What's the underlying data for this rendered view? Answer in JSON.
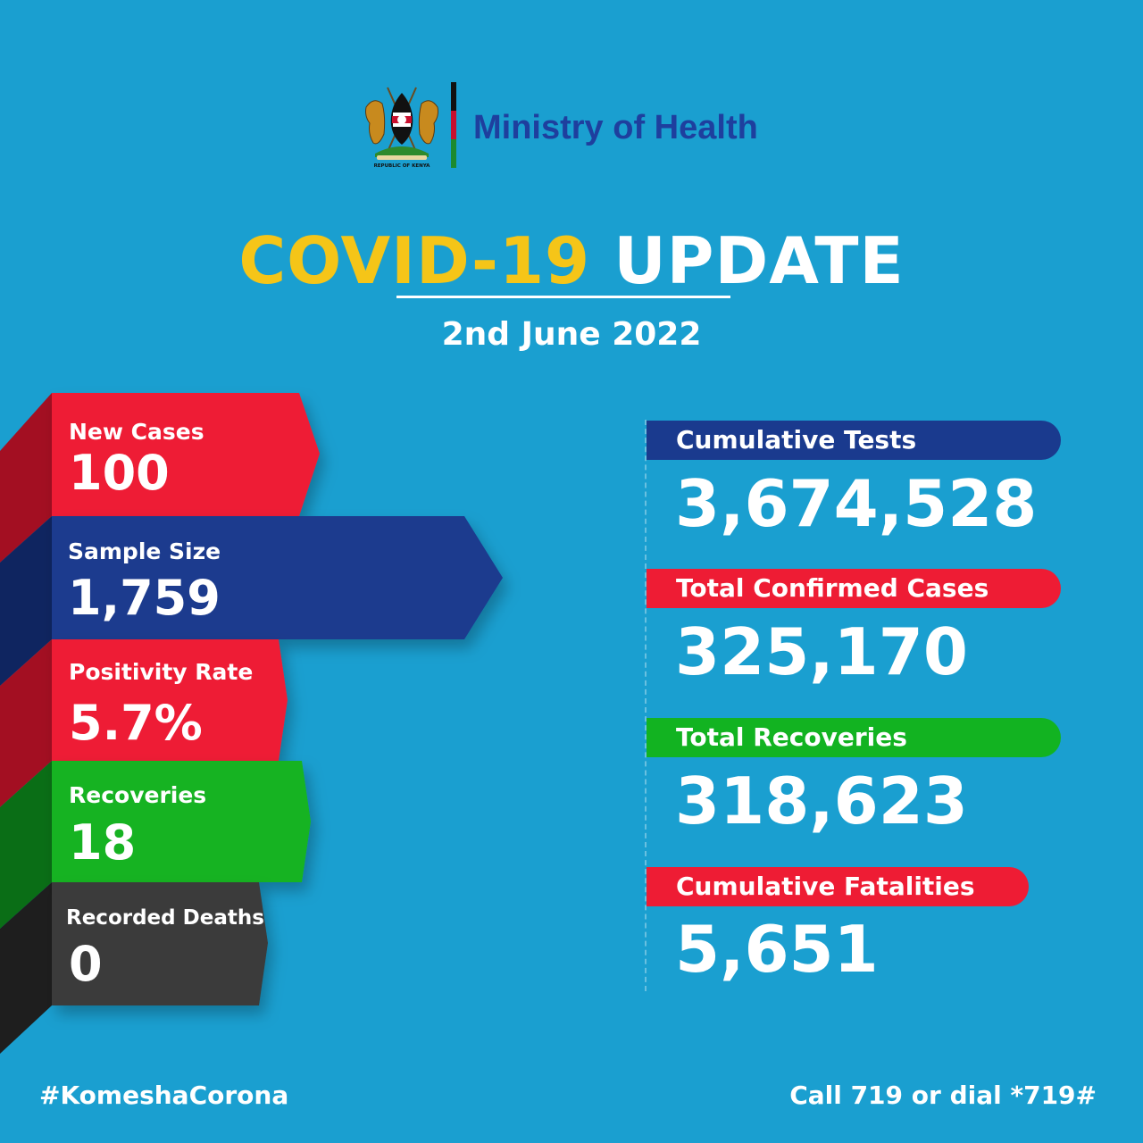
{
  "header": {
    "coat_of_arms": {
      "caption": "REPUBLIC OF KENYA",
      "icon": "kenya-coat-of-arms-icon"
    },
    "ministry": "Ministry of Health",
    "title_part1": "COVID-19",
    "title_part2": "UPDATE",
    "date": "2nd June 2022"
  },
  "daily": [
    {
      "label": "New Cases",
      "value": "100",
      "color": "#ee1c34"
    },
    {
      "label": "Sample Size",
      "value": "1,759",
      "color": "#1a3a8e"
    },
    {
      "label": "Positivity Rate",
      "value": "5.7%",
      "color": "#ee1c34"
    },
    {
      "label": "Recoveries",
      "value": "18",
      "color": "#12b321"
    },
    {
      "label": "Recorded Deaths",
      "value": "0",
      "color": "#3a3a3a"
    }
  ],
  "cumulative": [
    {
      "label": "Cumulative Tests",
      "value": "3,674,528",
      "color": "#1a3a8e"
    },
    {
      "label": "Total Confirmed Cases",
      "value": "325,170",
      "color": "#ee1c34"
    },
    {
      "label": "Total Recoveries",
      "value": "318,623",
      "color": "#12b321"
    },
    {
      "label": "Cumulative Fatalities",
      "value": "5,651",
      "color": "#ee1c34"
    }
  ],
  "footer": {
    "hashtag": "#KomeshaCorona",
    "hotline": "Call 719 or dial *719#"
  },
  "colors": {
    "background": "#1a9fd0",
    "title_yellow": "#f5c518",
    "ministry_blue": "#1e3f9e"
  }
}
